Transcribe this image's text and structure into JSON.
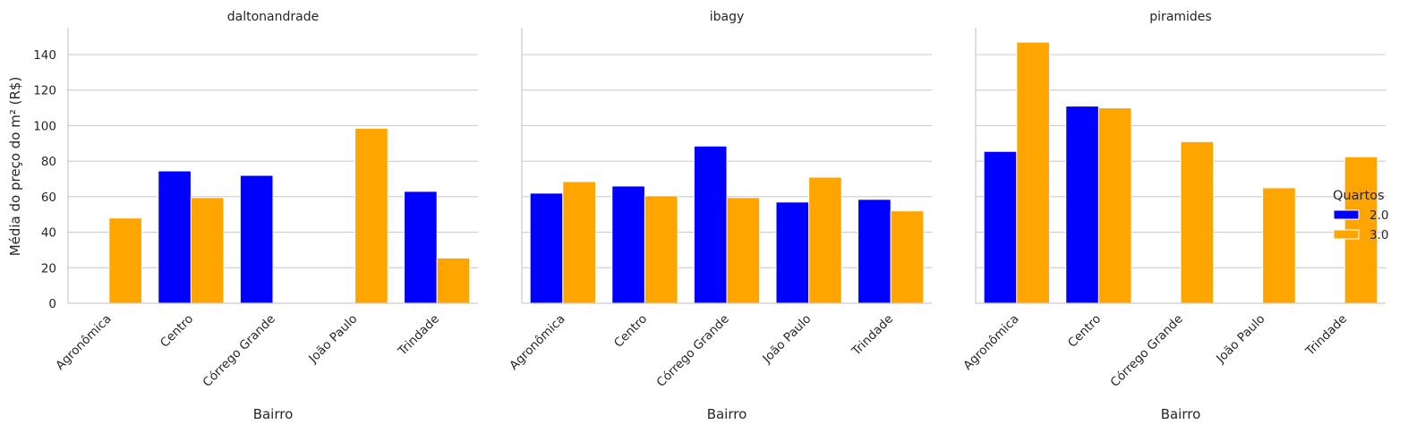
{
  "chart_data": {
    "type": "bar",
    "ylabel": "Média do preço do m² (R$)",
    "xlabel": "Bairro",
    "ylim": [
      0,
      155
    ],
    "yticks": [
      0,
      20,
      40,
      60,
      80,
      100,
      120,
      140
    ],
    "grid": "horizontal",
    "legend": {
      "title": "Quartos",
      "placement": "right",
      "entries": [
        {
          "name": "2.0",
          "color": "#0000ff"
        },
        {
          "name": "3.0",
          "color": "#ffa500"
        }
      ]
    },
    "categories": [
      "Agronômica",
      "Centro",
      "Córrego Grande",
      "João Paulo",
      "Trindade"
    ],
    "panels": [
      {
        "title": "daltonandrade",
        "series": [
          {
            "name": "2.0",
            "values": [
              null,
              74.5,
              72,
              null,
              63
            ]
          },
          {
            "name": "3.0",
            "values": [
              48,
              59.5,
              null,
              98.5,
              25.5
            ]
          }
        ]
      },
      {
        "title": "ibagy",
        "series": [
          {
            "name": "2.0",
            "values": [
              62,
              66,
              88.5,
              57,
              58.5
            ]
          },
          {
            "name": "3.0",
            "values": [
              68.5,
              60.5,
              59.5,
              71,
              52
            ]
          }
        ]
      },
      {
        "title": "piramides",
        "series": [
          {
            "name": "2.0",
            "values": [
              85.5,
              111,
              null,
              null,
              null
            ]
          },
          {
            "name": "3.0",
            "values": [
              147,
              110,
              91,
              65,
              82.5
            ]
          }
        ]
      }
    ]
  }
}
